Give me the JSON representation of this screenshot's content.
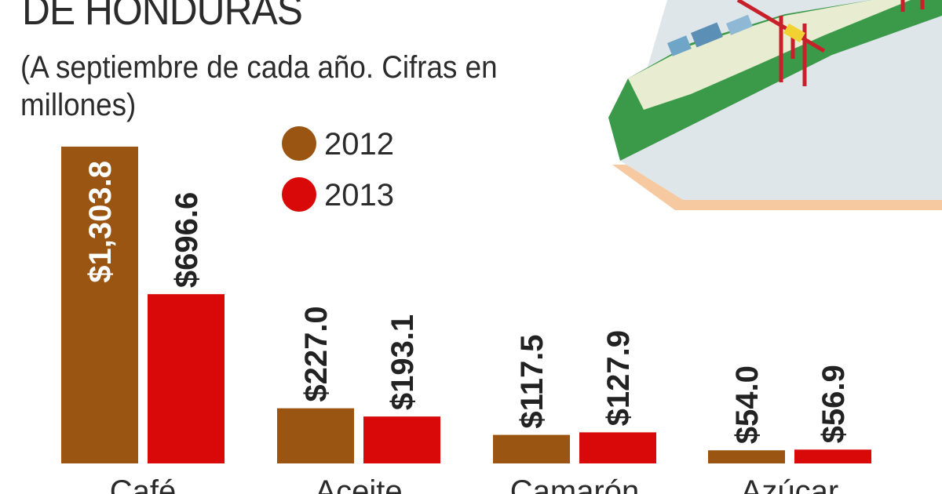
{
  "header": {
    "title": "DE HONDURAS",
    "subtitle": "(A septiembre de cada año. Cifras en millones)"
  },
  "colors": {
    "2012": "#9a5512",
    "2013": "#d90909",
    "label_inside": "#ffffff",
    "label_outside": "#222222",
    "ship_hull": "#3a9a4a",
    "ship_deck": "#e8ecd0",
    "dock": "#dfe6ea",
    "crane": "#c8202a"
  },
  "chart_data": {
    "type": "bar",
    "title": "DE HONDURAS",
    "subtitle": "(A septiembre de cada año. Cifras en millones)",
    "categories": [
      "Café",
      "Aceite",
      "Camarón",
      "Azúcar"
    ],
    "series": [
      {
        "name": "2012",
        "values": [
          1303.8,
          227.0,
          117.5,
          54.0
        ],
        "labels": [
          "$1,303.8",
          "$227.0",
          "$117.5",
          "$54.0"
        ]
      },
      {
        "name": "2013",
        "values": [
          696.6,
          193.1,
          127.9,
          56.9
        ],
        "labels": [
          "$696.6",
          "$193.1",
          "$127.9",
          "$56.9"
        ]
      }
    ],
    "ylim": [
      0,
      1303.8
    ],
    "grid": false,
    "legend_position": "top-center"
  }
}
